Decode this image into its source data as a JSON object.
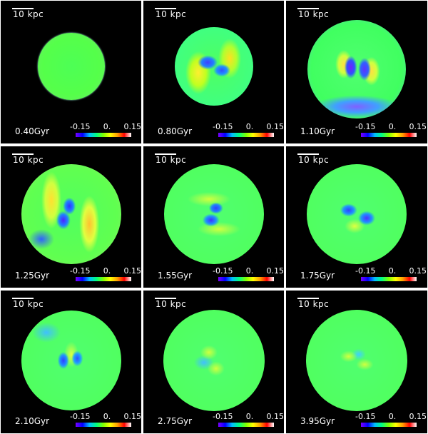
{
  "scale_label": "10 kpc",
  "colorbar": {
    "min": "-0.15",
    "mid": "0.",
    "max": "0.15"
  },
  "panels": [
    {
      "time": "0.40Gyr"
    },
    {
      "time": "0.80Gyr"
    },
    {
      "time": "1.10Gyr"
    },
    {
      "time": "1.25Gyr"
    },
    {
      "time": "1.55Gyr"
    },
    {
      "time": "1.75Gyr"
    },
    {
      "time": "2.10Gyr"
    },
    {
      "time": "2.75Gyr"
    },
    {
      "time": "3.95Gyr"
    }
  ]
}
